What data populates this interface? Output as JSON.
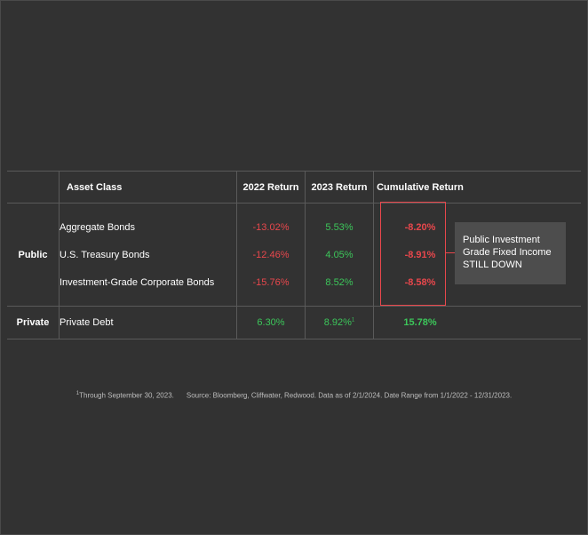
{
  "chart_data": {
    "type": "table",
    "columns": [
      "Asset Class",
      "2022 Return",
      "2023 Return",
      "Cumulative Return"
    ],
    "groups": [
      {
        "label": "Public",
        "rows": [
          {
            "asset": "Aggregate Bonds",
            "r2022": "-13.02%",
            "r2023": "5.53%",
            "cumulative": "-8.20%"
          },
          {
            "asset": "U.S. Treasury Bonds",
            "r2022": "-12.46%",
            "r2023": "4.05%",
            "cumulative": "-8.91%"
          },
          {
            "asset": "Investment-Grade Corporate Bonds",
            "r2022": "-15.76%",
            "r2023": "8.52%",
            "cumulative": "-8.58%"
          }
        ]
      },
      {
        "label": "Private",
        "rows": [
          {
            "asset": "Private Debt",
            "r2022": "6.30%",
            "r2023": "8.92%",
            "r2023_footnote": "1",
            "cumulative": "15.78%"
          }
        ]
      }
    ],
    "callout": {
      "lines": [
        "Public Investment",
        "Grade Fixed Income",
        "STILL DOWN"
      ]
    },
    "footnote": {
      "marker": "1",
      "text": "Through September 30, 2023.",
      "source": "Source: Bloomberg, Cliffwater, Redwood. Data as of 2/1/2024. Date Range from 1/1/2022 - 12/31/2023."
    }
  },
  "colors": {
    "background": "#323232",
    "negative": "#e8474c",
    "positive": "#3cc65a",
    "callout_bg": "#4d4d4d",
    "grid": "#5a5a5a"
  }
}
